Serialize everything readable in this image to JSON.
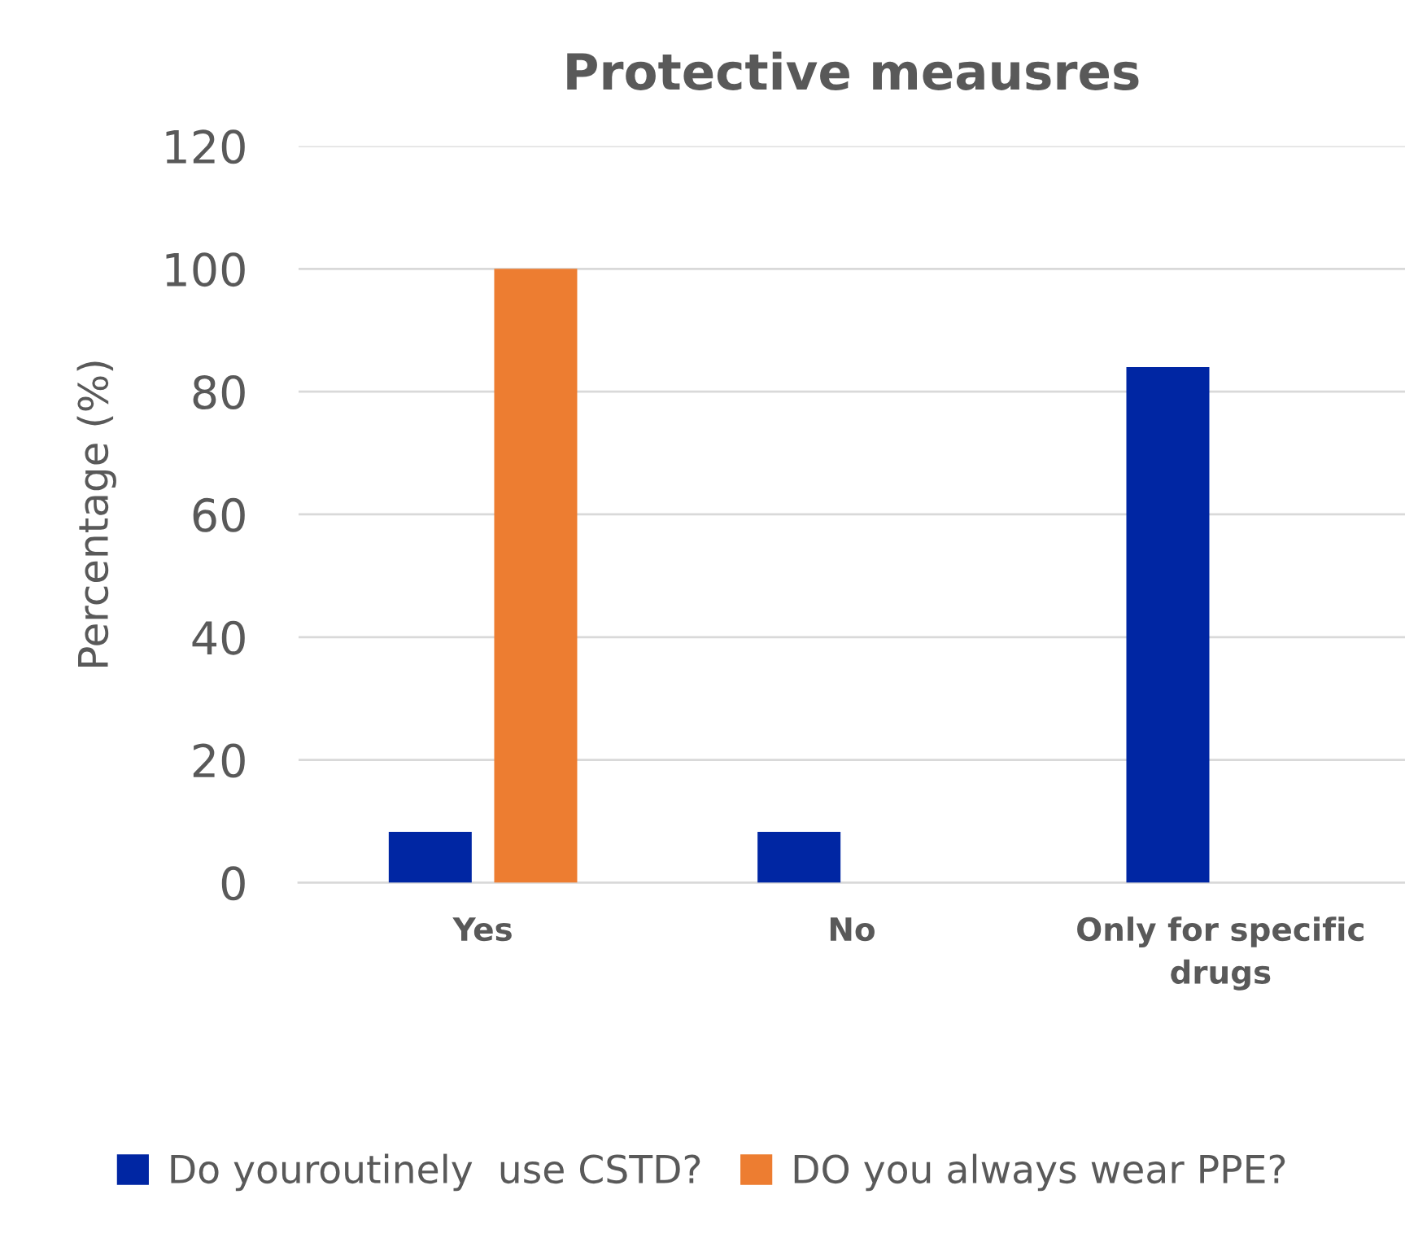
{
  "chart_data": {
    "type": "bar",
    "title": "Protective meausres",
    "ylabel": "Percentage (%)",
    "categories": [
      "Yes",
      "No",
      "Only for specific drugs"
    ],
    "series": [
      {
        "name": "Do youroutinely  use CSTD?",
        "color": "#0026a3",
        "values": [
          8.3,
          8.3,
          84
        ]
      },
      {
        "name": "DO you always wear PPE?",
        "color": "#ed7d31",
        "values": [
          100,
          0,
          0
        ]
      }
    ],
    "ylim": [
      0,
      120
    ],
    "yticks": [
      0,
      20,
      40,
      60,
      80,
      100,
      120
    ],
    "grid": "y",
    "legend": "bottom"
  }
}
